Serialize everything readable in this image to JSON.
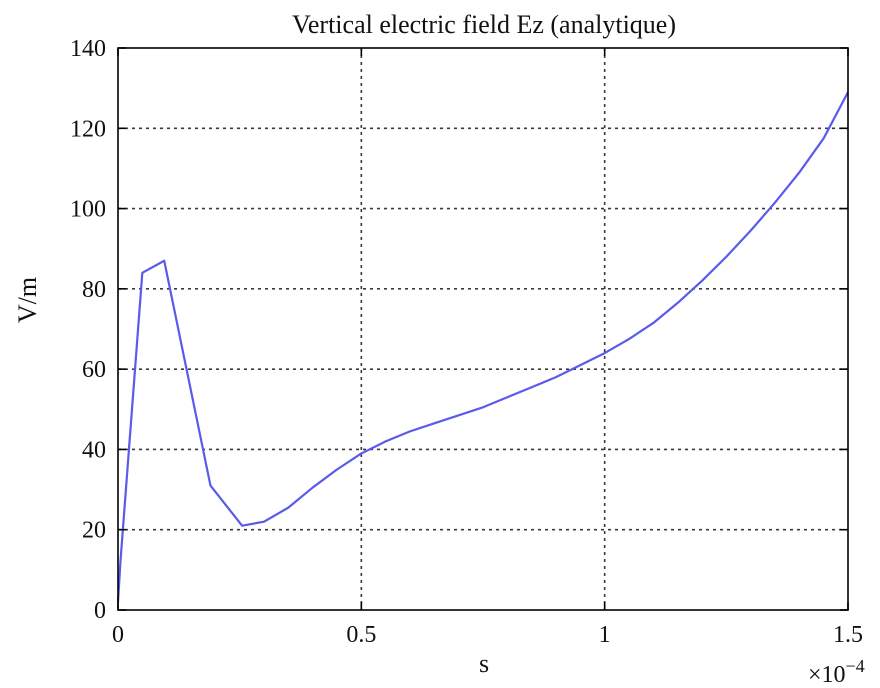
{
  "chart_data": {
    "type": "line",
    "title": "Vertical electric field Ez (analytique)",
    "xlabel": "s",
    "ylabel": "V/m",
    "x_exponent": {
      "base": "×10",
      "power": "−4"
    },
    "xlim": [
      0,
      0.00015
    ],
    "ylim": [
      0,
      140
    ],
    "grid": true,
    "x_ticks": [
      {
        "value": 0,
        "label": "0"
      },
      {
        "value": 5e-05,
        "label": "0.5"
      },
      {
        "value": 0.0001,
        "label": "1"
      },
      {
        "value": 0.00015,
        "label": "1.5"
      }
    ],
    "y_ticks": [
      {
        "value": 0,
        "label": "0"
      },
      {
        "value": 20,
        "label": "20"
      },
      {
        "value": 40,
        "label": "40"
      },
      {
        "value": 60,
        "label": "60"
      },
      {
        "value": 80,
        "label": "80"
      },
      {
        "value": 100,
        "label": "100"
      },
      {
        "value": 120,
        "label": "120"
      },
      {
        "value": 140,
        "label": "140"
      }
    ],
    "series": [
      {
        "color": "#5a5aec",
        "x": [
          0,
          5e-07,
          5e-06,
          9.5e-06,
          1.9e-05,
          2.55e-05,
          3e-05,
          3.5e-05,
          4e-05,
          4.5e-05,
          5e-05,
          5.5e-05,
          6e-05,
          6.5e-05,
          7e-05,
          7.5e-05,
          8e-05,
          8.5e-05,
          9e-05,
          9.5e-05,
          0.0001,
          0.000105,
          0.00011,
          0.000115,
          0.00012,
          0.000125,
          0.00013,
          0.000135,
          0.00014,
          0.000145,
          0.00015
        ],
        "y": [
          2,
          12,
          84,
          87,
          31,
          21,
          22,
          25.5,
          30.5,
          35,
          39,
          42,
          44.5,
          46.5,
          48.5,
          50.5,
          53,
          55.5,
          58,
          61,
          64,
          67.5,
          71.5,
          76.5,
          82,
          88,
          94.5,
          101.5,
          109,
          117.5,
          129
        ]
      }
    ]
  }
}
